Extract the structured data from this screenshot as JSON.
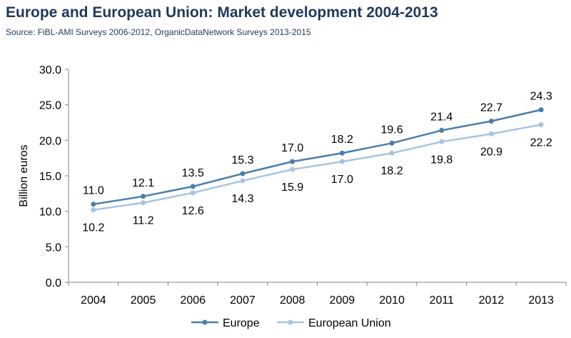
{
  "title": "Europe and European Union: Market development 2004-2013",
  "subtitle": "Source: FiBL-AMI Surveys 2006-2012, OrganicDataNetwork Surveys 2013-2015",
  "chart_data": {
    "type": "line",
    "categories": [
      "2004",
      "2005",
      "2006",
      "2007",
      "2008",
      "2009",
      "2010",
      "2011",
      "2012",
      "2013"
    ],
    "series": [
      {
        "name": "Europe",
        "values": [
          11.0,
          12.1,
          13.5,
          15.3,
          17.0,
          18.2,
          19.6,
          21.4,
          22.7,
          24.3
        ],
        "color": "#4a7fa8",
        "label_position": "above"
      },
      {
        "name": "European Union",
        "values": [
          10.2,
          11.2,
          12.6,
          14.3,
          15.9,
          17.0,
          18.2,
          19.8,
          20.9,
          22.2
        ],
        "color": "#a9c4de",
        "label_position": "below"
      }
    ],
    "ylabel": "Billion euros",
    "ylim": [
      0,
      30
    ],
    "yticks": [
      "0.0",
      "5.0",
      "10.0",
      "15.0",
      "20.0",
      "25.0",
      "30.0"
    ],
    "grid": false,
    "legend_position": "bottom"
  }
}
